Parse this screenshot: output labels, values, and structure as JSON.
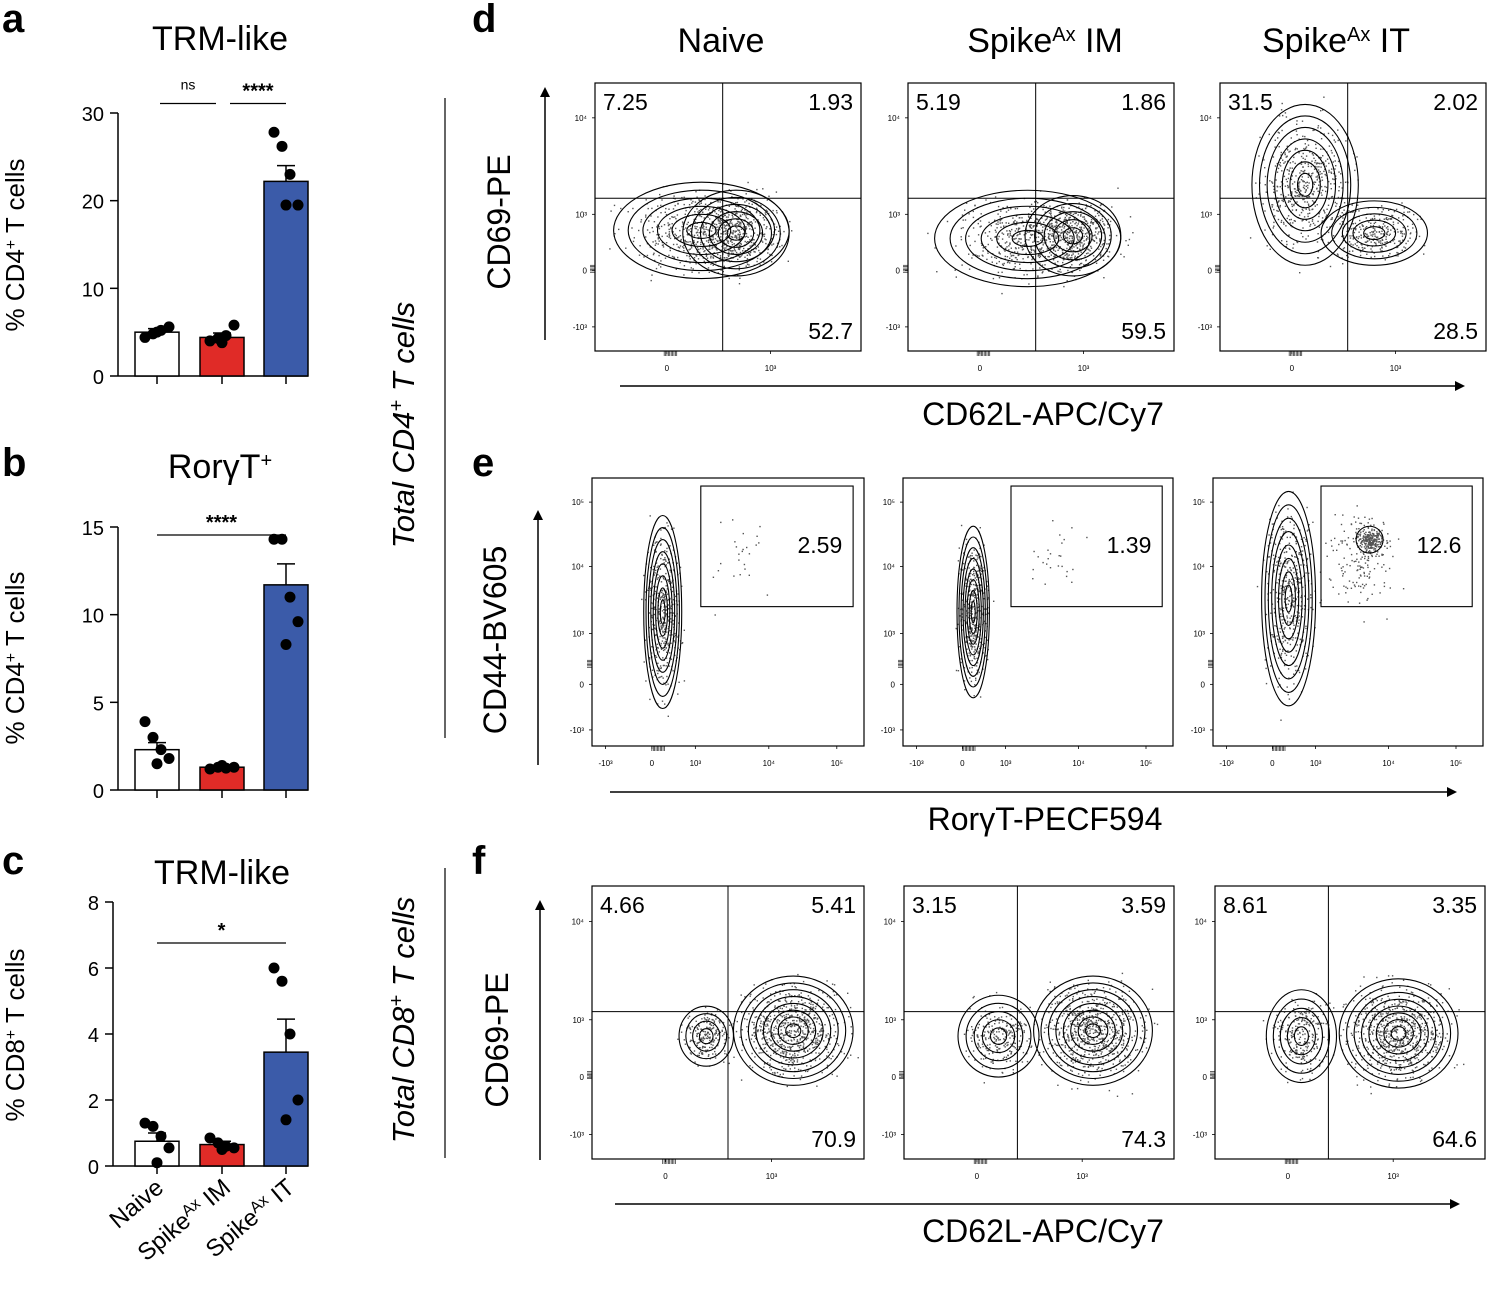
{
  "panel_letters": {
    "a": "a",
    "b": "b",
    "c": "c",
    "d": "d",
    "e": "e",
    "f": "f"
  },
  "colors": {
    "naive": "#ffffff",
    "im": "#e02b27",
    "it": "#3b5ba9",
    "edge": "#000000",
    "point": "#000000",
    "dots": "#555555"
  },
  "groups": {
    "naive": "Naive",
    "spike_base": "Spike",
    "spike_sup": "Ax",
    "im_suffix": " IM",
    "it_suffix": " IT"
  },
  "side_labels": {
    "cd4": {
      "pre": "Total CD4",
      "sup": "+",
      "post": " T cells"
    },
    "cd8": {
      "pre": "Total CD8",
      "sup": "+",
      "post": " T cells"
    }
  },
  "chart_data": [
    {
      "id": "a",
      "type": "bar",
      "title": "TRM-like",
      "ylabel": {
        "pre": "% CD4",
        "sup": "+",
        "post": " T cells"
      },
      "ylim": [
        0,
        30
      ],
      "yticks": [
        0,
        10,
        20,
        30
      ],
      "categories": [
        "Naive",
        "SpikeAx IM",
        "SpikeAx IT"
      ],
      "values": [
        5.0,
        4.4,
        22.2
      ],
      "sem": [
        0.4,
        0.5,
        1.8
      ],
      "points": [
        [
          4.4,
          4.8,
          5.2,
          5.6,
          5.0
        ],
        [
          4.0,
          4.3,
          4.6,
          5.8,
          3.8
        ],
        [
          27.8,
          26.2,
          23.0,
          19.5,
          19.5
        ]
      ],
      "comparisons": [
        {
          "from": 0,
          "to": 1,
          "label": "ns",
          "y": 32.0
        },
        {
          "from": 1,
          "to": 2,
          "label": "****",
          "y": 32.0
        }
      ]
    },
    {
      "id": "b",
      "type": "bar",
      "title_main": "Rorγ",
      "title_tail": "T",
      "title_sup": "+",
      "ylabel": {
        "pre": "% CD4",
        "sup": "+",
        "post": " T cells"
      },
      "ylim": [
        0,
        15
      ],
      "yticks": [
        0,
        5,
        10,
        15
      ],
      "categories": [
        "Naive",
        "SpikeAx IM",
        "SpikeAx IT"
      ],
      "values": [
        2.3,
        1.3,
        11.7
      ],
      "sem": [
        0.4,
        0.1,
        1.2
      ],
      "points": [
        [
          3.9,
          3.0,
          2.3,
          1.8,
          1.5
        ],
        [
          1.2,
          1.3,
          1.25,
          1.3,
          1.4
        ],
        [
          14.3,
          14.3,
          11.0,
          9.6,
          8.3
        ]
      ],
      "comparisons": [
        {
          "from": 0,
          "to": 2,
          "label": "****",
          "y": 15.0
        }
      ]
    },
    {
      "id": "c",
      "type": "bar",
      "title": "TRM-like",
      "ylabel": {
        "pre": "% CD8",
        "sup": "+",
        "post": " T cells"
      },
      "ylim": [
        0,
        8
      ],
      "yticks": [
        0,
        2,
        4,
        6,
        8
      ],
      "categories": [
        "Naive",
        "SpikeAx IM",
        "SpikeAx IT"
      ],
      "values": [
        0.75,
        0.65,
        3.45
      ],
      "sem": [
        0.25,
        0.1,
        1.0
      ],
      "points": [
        [
          1.3,
          1.2,
          0.9,
          0.55,
          0.1
        ],
        [
          0.85,
          0.7,
          0.6,
          0.55,
          0.5
        ],
        [
          6.0,
          5.6,
          4.0,
          2.0,
          1.4
        ]
      ],
      "comparisons": [
        {
          "from": 0,
          "to": 2,
          "label": "*",
          "y": 7.0
        }
      ]
    },
    {
      "id": "d",
      "type": "flow-quadrant",
      "ylabel": "CD69-PE",
      "xlabel": "CD62L-APC/Cy7",
      "panels": [
        {
          "col": "Naive",
          "quadrants": {
            "ul": "7.25",
            "ur": "1.93",
            "lr": "52.7"
          }
        },
        {
          "col": "SpikeAx IM",
          "quadrants": {
            "ul": "5.19",
            "ur": "1.86",
            "lr": "59.5"
          }
        },
        {
          "col": "SpikeAx IT",
          "quadrants": {
            "ul": "31.5",
            "ur": "2.02",
            "lr": "28.5"
          }
        }
      ]
    },
    {
      "id": "e",
      "type": "flow-gate",
      "ylabel": "CD44-BV605",
      "xlabel": "RorγT-PECF594",
      "panels": [
        {
          "col": "Naive",
          "gate": "2.59"
        },
        {
          "col": "SpikeAx IM",
          "gate": "1.39"
        },
        {
          "col": "SpikeAx IT",
          "gate": "12.6"
        }
      ]
    },
    {
      "id": "f",
      "type": "flow-quadrant",
      "ylabel": "CD69-PE",
      "xlabel": "CD62L-APC/Cy7",
      "panels": [
        {
          "col": "Naive",
          "quadrants": {
            "ul": "4.66",
            "ur": "5.41",
            "lr": "70.9"
          }
        },
        {
          "col": "SpikeAx IM",
          "quadrants": {
            "ul": "3.15",
            "ur": "3.59",
            "lr": "74.3"
          }
        },
        {
          "col": "SpikeAx IT",
          "quadrants": {
            "ul": "8.61",
            "ur": "3.35",
            "lr": "64.6"
          }
        }
      ]
    }
  ],
  "flow_axes": {
    "de_y_ticks": [
      "10⁴",
      "10³",
      "0",
      "-10³"
    ],
    "de_x_ticks": [
      "0",
      "10³"
    ],
    "e_y_ticks": [
      "10⁵",
      "10⁴",
      "10³",
      "0",
      "-10³"
    ],
    "e_x_ticks": [
      "-10³",
      "0",
      "10³",
      "10⁴",
      "10⁵"
    ]
  }
}
